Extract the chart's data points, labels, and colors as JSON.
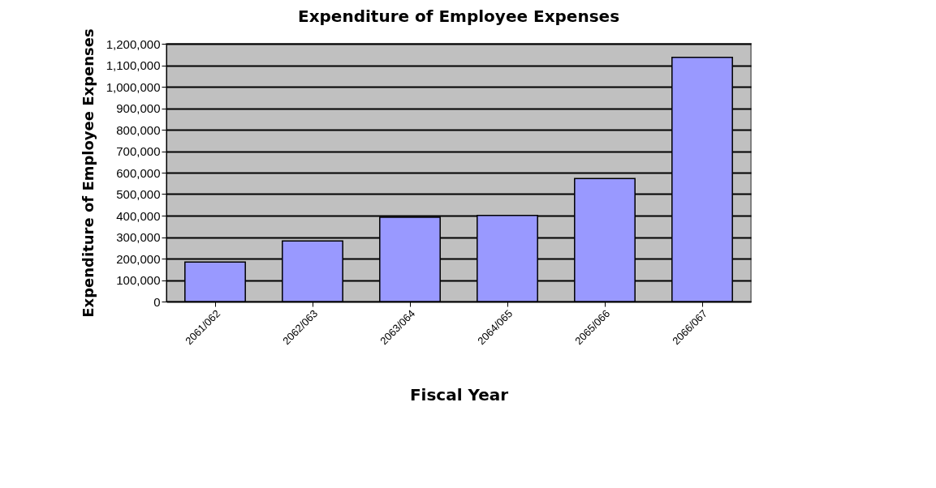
{
  "chart_data": {
    "type": "bar",
    "title": "Expenditure of Employee Expenses",
    "xlabel": "Fiscal Year",
    "ylabel": "Expenditure of Employee Expenses",
    "categories": [
      "2061/062",
      "2062/063",
      "2063/064",
      "2064/065",
      "2065/066",
      "2066/067"
    ],
    "values": [
      184000,
      282000,
      392000,
      401000,
      573000,
      1137000
    ],
    "color": "#9999ff",
    "ylim": [
      0,
      1200000
    ],
    "yticks": [
      {
        "value": 0,
        "label": "0"
      },
      {
        "value": 100000,
        "label": "100,000"
      },
      {
        "value": 200000,
        "label": "200,000"
      },
      {
        "value": 300000,
        "label": "300,000"
      },
      {
        "value": 400000,
        "label": "400,000"
      },
      {
        "value": 500000,
        "label": "500,000"
      },
      {
        "value": 600000,
        "label": "600,000"
      },
      {
        "value": 700000,
        "label": "700,000"
      },
      {
        "value": 800000,
        "label": "800,000"
      },
      {
        "value": 900000,
        "label": "900,000"
      },
      {
        "value": 1000000,
        "label": "1,000,000"
      },
      {
        "value": 1100000,
        "label": "1,100,000"
      },
      {
        "value": 1200000,
        "label": "1,200,000"
      }
    ],
    "grid": "y"
  }
}
